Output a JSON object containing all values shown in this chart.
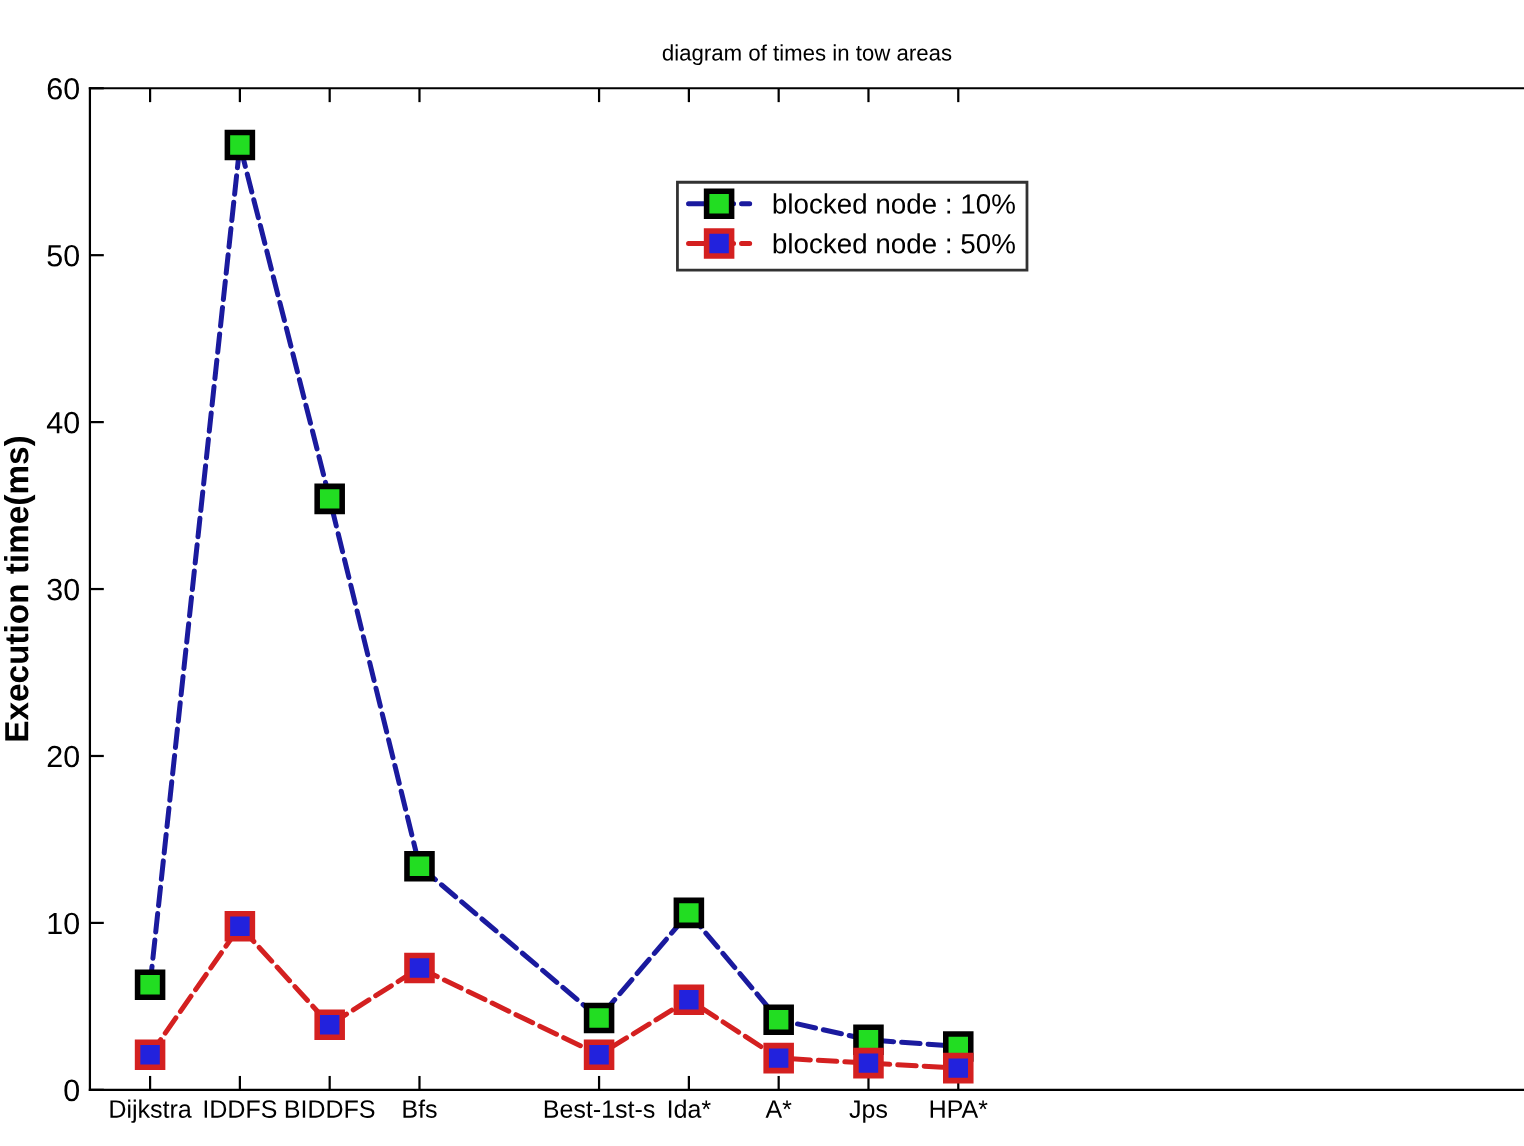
{
  "chart_data": {
    "type": "line",
    "title": "diagram of times in tow areas",
    "ylabel": "Execution time(ms)",
    "categories": [
      "Dijkstra",
      "IDDFS",
      "BIDDFS",
      "Bfs",
      null,
      "Best-1st-s",
      "Ida*",
      "A*",
      "Jps",
      "HPA*",
      null,
      null,
      null,
      null,
      null,
      null
    ],
    "ylim": [
      0,
      60
    ],
    "yticks": [
      0,
      10,
      20,
      30,
      40,
      50,
      60
    ],
    "series": [
      {
        "name": "blocked node : 10%",
        "color": "#1a1a9e",
        "values": [
          6.3,
          56.6,
          35.4,
          13.4,
          null,
          4.3,
          10.6,
          4.2,
          3.0,
          2.6,
          null,
          null,
          null,
          null,
          null,
          null
        ]
      },
      {
        "name": "blocked node : 50%",
        "color": "#d42020",
        "values": [
          2.1,
          9.8,
          3.9,
          7.3,
          null,
          2.1,
          5.4,
          1.9,
          1.6,
          1.3,
          null,
          null,
          null,
          null,
          null,
          null
        ]
      }
    ],
    "marker": "square",
    "line_style": "dashed",
    "grid": false,
    "legend": "top"
  }
}
